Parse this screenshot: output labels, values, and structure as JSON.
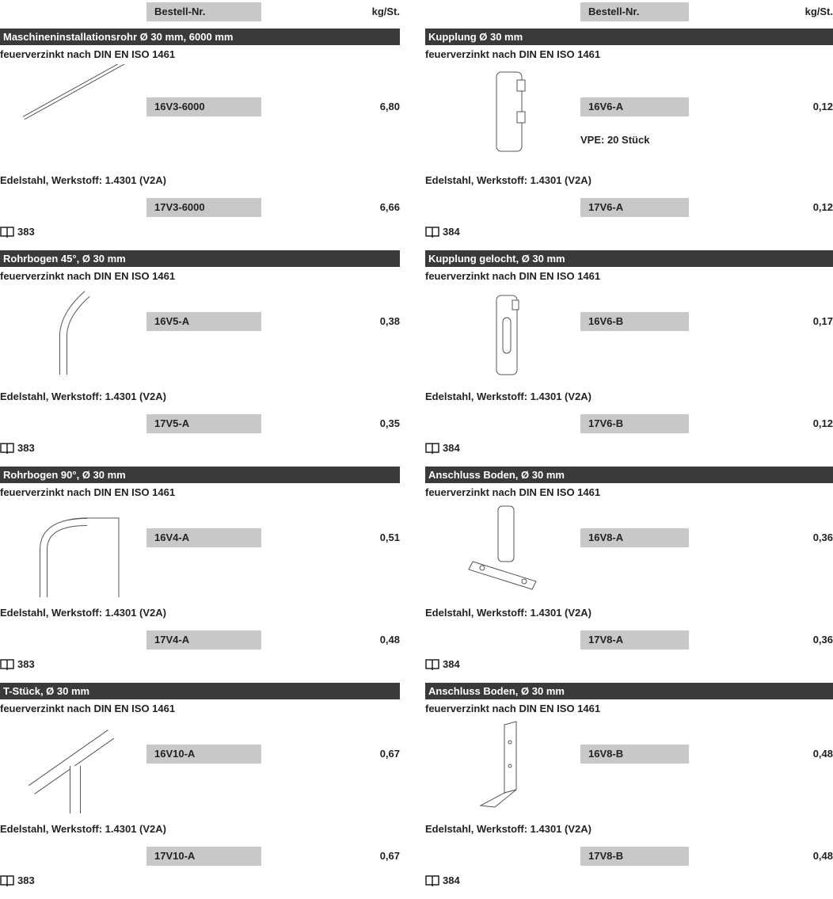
{
  "columns": [
    {
      "header": {
        "order_no": "Bestell-Nr.",
        "weight": "kg/St."
      },
      "sections": [
        {
          "title": "Maschineninstallationsrohr Ø 30 mm, 6000 mm",
          "galvanized": {
            "label": "feuerverzinkt nach DIN EN ISO 1461",
            "order_no": "16V3-6000",
            "weight": "6,80"
          },
          "stainless": {
            "label": "Edelstahl, Werkstoff: 1.4301 (V2A)",
            "order_no": "17V3-6000",
            "weight": "6,66"
          },
          "page": "383"
        },
        {
          "title": "Rohrbogen 45°, Ø 30 mm",
          "galvanized": {
            "label": "feuerverzinkt nach DIN EN ISO 1461",
            "order_no": "16V5-A",
            "weight": "0,38"
          },
          "stainless": {
            "label": "Edelstahl, Werkstoff: 1.4301 (V2A)",
            "order_no": "17V5-A",
            "weight": "0,35"
          },
          "page": "383"
        },
        {
          "title": "Rohrbogen 90°, Ø 30 mm",
          "galvanized": {
            "label": "feuerverzinkt nach DIN EN ISO 1461",
            "order_no": "16V4-A",
            "weight": "0,51"
          },
          "stainless": {
            "label": "Edelstahl, Werkstoff: 1.4301 (V2A)",
            "order_no": "17V4-A",
            "weight": "0,48"
          },
          "page": "383"
        },
        {
          "title": "T-Stück, Ø 30 mm",
          "galvanized": {
            "label": "feuerverzinkt nach DIN EN ISO 1461",
            "order_no": "16V10-A",
            "weight": "0,67"
          },
          "stainless": {
            "label": "Edelstahl, Werkstoff: 1.4301 (V2A)",
            "order_no": "17V10-A",
            "weight": "0,67"
          },
          "page": "383"
        }
      ]
    },
    {
      "header": {
        "order_no": "Bestell-Nr.",
        "weight": "kg/St."
      },
      "sections": [
        {
          "title": "Kupplung Ø 30 mm",
          "galvanized": {
            "label": "feuerverzinkt nach DIN EN ISO 1461",
            "order_no": "16V6-A",
            "weight": "0,12",
            "note": "VPE: 20 Stück"
          },
          "stainless": {
            "label": "Edelstahl, Werkstoff: 1.4301 (V2A)",
            "order_no": "17V6-A",
            "weight": "0,12"
          },
          "page": "384"
        },
        {
          "title": "Kupplung gelocht, Ø 30 mm",
          "galvanized": {
            "label": "feuerverzinkt nach DIN EN ISO 1461",
            "order_no": "16V6-B",
            "weight": "0,17"
          },
          "stainless": {
            "label": "Edelstahl, Werkstoff: 1.4301 (V2A)",
            "order_no": "17V6-B",
            "weight": "0,12"
          },
          "page": "384"
        },
        {
          "title": "Anschluss Boden, Ø 30 mm",
          "galvanized": {
            "label": "feuerverzinkt nach DIN EN ISO 1461",
            "order_no": "16V8-A",
            "weight": "0,36"
          },
          "stainless": {
            "label": "Edelstahl, Werkstoff: 1.4301 (V2A)",
            "order_no": "17V8-A",
            "weight": "0,36"
          },
          "page": "384"
        },
        {
          "title": "Anschluss Boden, Ø 30 mm",
          "galvanized": {
            "label": "feuerverzinkt nach DIN EN ISO 1461",
            "order_no": "16V8-B",
            "weight": "0,48"
          },
          "stainless": {
            "label": "Edelstahl, Werkstoff: 1.4301 (V2A)",
            "order_no": "17V8-B",
            "weight": "0,48"
          },
          "page": "384"
        }
      ]
    }
  ]
}
